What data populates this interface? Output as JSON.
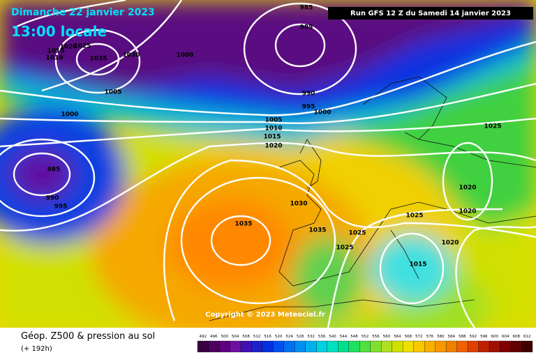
{
  "header": {
    "date": "Dimanche 22 janvier 2023",
    "time": "13:00 locale",
    "run": "Run GFS 12 Z du Samedi 14 janvier 2023"
  },
  "copyright": "Copyright © 2023 Meteociel.fr",
  "footer": {
    "title": "Géop. Z500 & pression au sol",
    "subtitle": "(+ 192h)"
  },
  "legend": {
    "labels": [
      "492",
      "496",
      "500",
      "504",
      "508",
      "512",
      "516",
      "520",
      "524",
      "528",
      "532",
      "536",
      "540",
      "544",
      "548",
      "552",
      "556",
      "560",
      "564",
      "568",
      "572",
      "576",
      "580",
      "584",
      "588",
      "592",
      "596",
      "600",
      "604",
      "608",
      "612"
    ]
  },
  "isobars": {
    "labels": [
      "985",
      "985",
      "1035",
      "1030",
      "1000",
      "1025",
      "1020",
      "1015",
      "1010",
      "1005",
      "1000",
      "990",
      "995",
      "1000",
      "1005",
      "1010",
      "1015",
      "1020",
      "985",
      "990",
      "995",
      "1030",
      "1035",
      "1035",
      "1025",
      "1025",
      "1025",
      "1020",
      "1020",
      "1015",
      "1020",
      "1025"
    ]
  }
}
